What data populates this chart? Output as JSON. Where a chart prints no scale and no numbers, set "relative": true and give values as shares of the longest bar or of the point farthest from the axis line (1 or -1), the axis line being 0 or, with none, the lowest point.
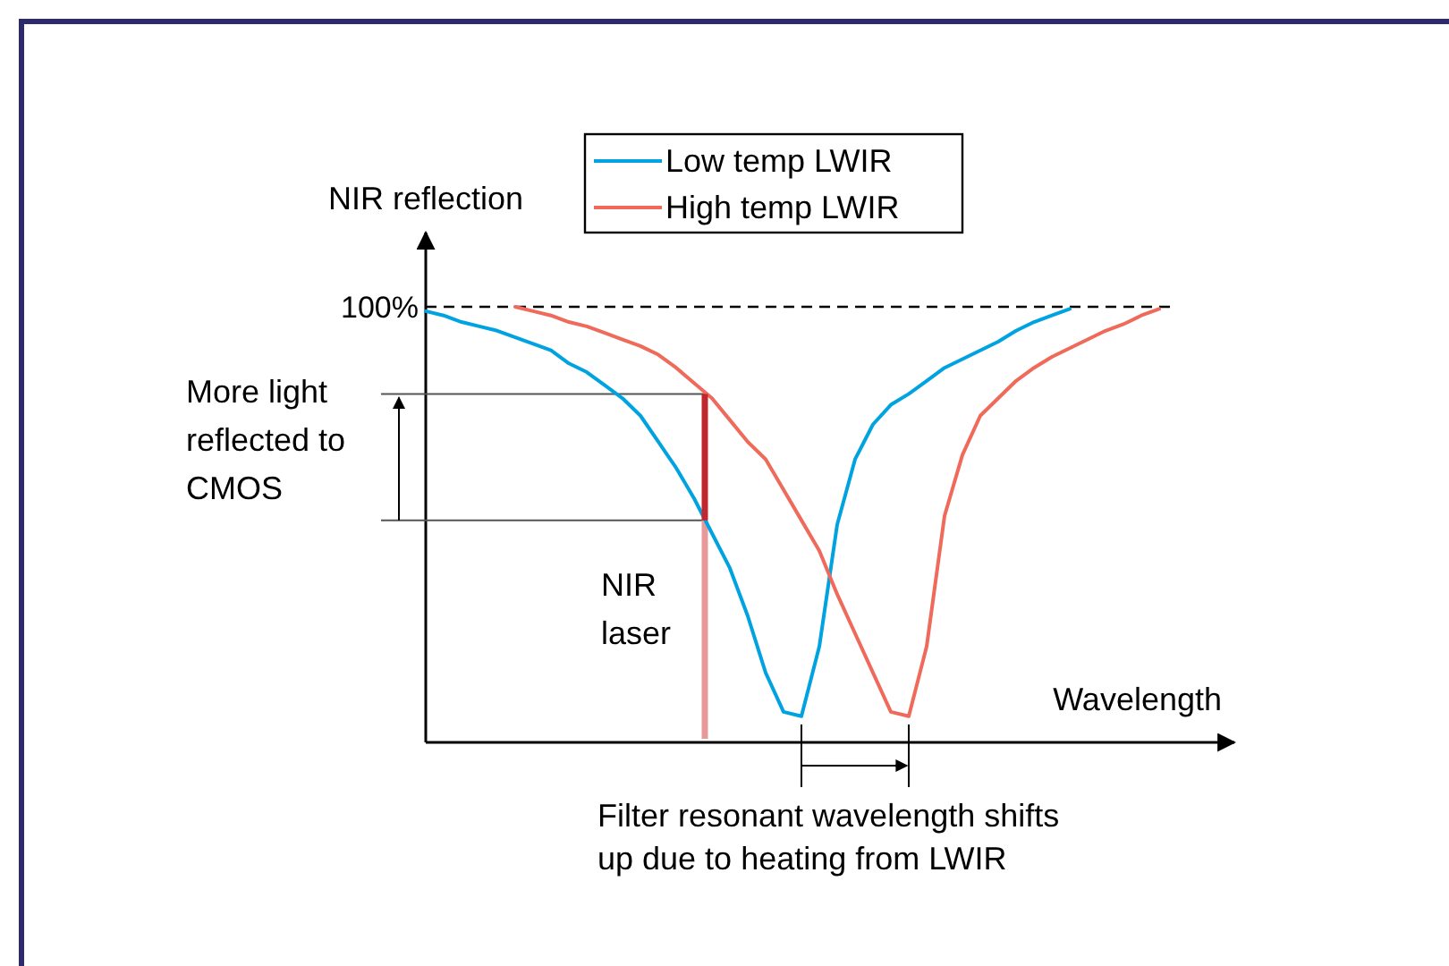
{
  "chart_data": {
    "type": "line",
    "relative": true,
    "xlabel": "Wavelength",
    "ylabel": "NIR reflection",
    "legend": "top",
    "line_style": "solid",
    "categories": [
      null,
      null,
      null,
      null,
      null,
      null,
      null,
      null,
      null,
      null,
      null,
      null,
      null,
      null,
      null,
      null,
      null,
      null,
      null,
      null,
      null,
      null,
      null,
      null,
      null,
      null,
      null,
      null,
      null,
      null,
      null,
      null,
      null,
      null,
      null,
      null,
      null,
      null,
      null,
      null,
      null,
      null,
      null,
      null,
      null,
      null
    ],
    "series": [
      {
        "name": "Low temp LWIR",
        "color": "#00a3e0",
        "values": [
          0.99,
          0.98,
          0.965,
          0.955,
          0.945,
          0.93,
          0.915,
          0.9,
          0.87,
          0.85,
          0.82,
          0.79,
          0.75,
          0.69,
          0.63,
          0.56,
          0.48,
          0.4,
          0.29,
          0.16,
          0.07,
          0.06,
          0.22,
          0.5,
          0.65,
          0.73,
          0.775,
          0.8,
          0.83,
          0.86,
          0.88,
          0.9,
          0.92,
          0.945,
          0.965,
          0.98,
          0.995,
          null,
          null,
          null,
          null,
          null,
          null,
          null,
          null,
          null
        ]
      },
      {
        "name": "High temp LWIR",
        "color": "#ef6a5a",
        "values": [
          null,
          null,
          null,
          null,
          null,
          1.0,
          0.99,
          0.98,
          0.965,
          0.955,
          0.94,
          0.925,
          0.91,
          0.89,
          0.86,
          0.825,
          0.79,
          0.74,
          0.69,
          0.65,
          0.58,
          0.51,
          0.44,
          0.34,
          0.25,
          0.16,
          0.07,
          0.06,
          0.22,
          0.52,
          0.66,
          0.75,
          0.79,
          0.83,
          0.86,
          0.885,
          0.905,
          0.925,
          0.945,
          0.96,
          0.98,
          0.995,
          null,
          null,
          null,
          null
        ]
      }
    ],
    "ref_lines": [
      {
        "axis": "y",
        "value": 1,
        "label": "100%",
        "color": "#000000",
        "line_style": "dashed"
      },
      {
        "axis": "y",
        "value": 0.8,
        "color": "#555555",
        "line_style": "solid"
      },
      {
        "axis": "y",
        "value": 0.51,
        "color": "#555555",
        "line_style": "solid"
      }
    ],
    "annotations": [
      "More light reflected to CMOS",
      "NIR laser",
      "Filter resonant wavelength shifts up due to heating from LWIR"
    ]
  }
}
